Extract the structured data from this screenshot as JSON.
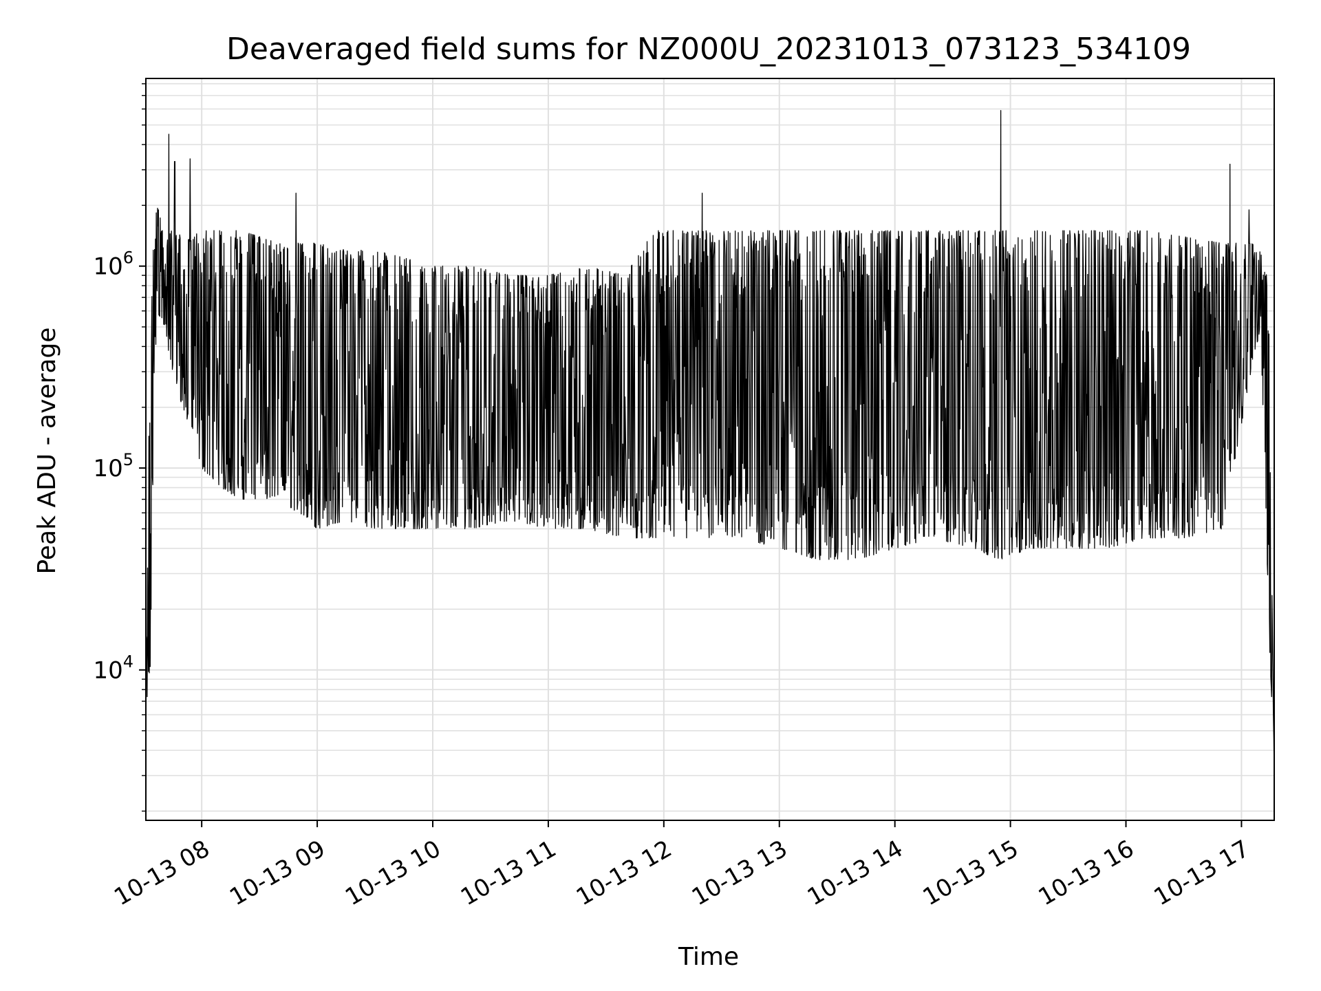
{
  "chart_data": {
    "type": "line",
    "title": "Deaveraged field sums for NZ000U_20231013_073123_534109",
    "xlabel": "Time",
    "ylabel": "Peak ADU - average",
    "yscale": "log",
    "ylim": [
      1800,
      8500000
    ],
    "xlim": [
      "2023-10-13 07:31",
      "2023-10-13 17:17"
    ],
    "x_ticks": [
      "10-13 08",
      "10-13 09",
      "10-13 10",
      "10-13 11",
      "10-13 12",
      "10-13 13",
      "10-13 14",
      "10-13 15",
      "10-13 16",
      "10-13 17"
    ],
    "y_ticks": [
      {
        "base": "10",
        "exp": "4",
        "value": 10000
      },
      {
        "base": "10",
        "exp": "5",
        "value": 100000
      },
      {
        "base": "10",
        "exp": "6",
        "value": 1000000
      }
    ],
    "grid": true,
    "line_color": "#000000",
    "grid_color": "#e0e0e0",
    "series": [
      {
        "x": [
          "2023-10-13 07:31",
          "2023-10-13 07:33",
          "2023-10-13 07:35",
          "2023-10-13 07:37",
          "2023-10-13 07:40",
          "2023-10-13 07:45",
          "2023-10-13 07:50",
          "2023-10-13 07:55",
          "2023-10-13 08:00",
          "2023-10-13 08:10",
          "2023-10-13 08:20",
          "2023-10-13 08:30",
          "2023-10-13 08:40",
          "2023-10-13 08:50",
          "2023-10-13 09:00",
          "2023-10-13 09:15",
          "2023-10-13 09:30",
          "2023-10-13 09:45",
          "2023-10-13 10:00",
          "2023-10-13 10:20",
          "2023-10-13 10:40",
          "2023-10-13 11:00",
          "2023-10-13 11:20",
          "2023-10-13 11:40",
          "2023-10-13 11:55",
          "2023-10-13 12:05",
          "2023-10-13 12:20",
          "2023-10-13 12:40",
          "2023-10-13 13:00",
          "2023-10-13 13:20",
          "2023-10-13 13:40",
          "2023-10-13 14:00",
          "2023-10-13 14:20",
          "2023-10-13 14:40",
          "2023-10-13 14:55",
          "2023-10-13 15:10",
          "2023-10-13 15:30",
          "2023-10-13 15:50",
          "2023-10-13 16:10",
          "2023-10-13 16:30",
          "2023-10-13 16:50",
          "2023-10-13 17:05",
          "2023-10-13 17:10",
          "2023-10-13 17:14",
          "2023-10-13 17:17"
        ],
        "low": [
          5000,
          6000,
          150000,
          600000,
          500000,
          300000,
          200000,
          150000,
          100000,
          80000,
          70000,
          70000,
          70000,
          60000,
          50000,
          55000,
          50000,
          50000,
          50000,
          50000,
          55000,
          50000,
          50000,
          45000,
          45000,
          45000,
          45000,
          45000,
          40000,
          35000,
          35000,
          40000,
          45000,
          40000,
          35000,
          40000,
          40000,
          40000,
          45000,
          45000,
          50000,
          300000,
          500000,
          20000,
          2500
        ],
        "high": [
          10000,
          300000,
          1500000,
          2000000,
          1500000,
          1500000,
          1400000,
          1400000,
          1500000,
          1500000,
          1500000,
          1400000,
          1300000,
          1300000,
          1300000,
          1200000,
          1200000,
          1100000,
          1000000,
          1000000,
          900000,
          900000,
          1000000,
          900000,
          1500000,
          1500000,
          1500000,
          1500000,
          1500000,
          1500000,
          1500000,
          1500000,
          1500000,
          1500000,
          1500000,
          1500000,
          1500000,
          1500000,
          1500000,
          1400000,
          1300000,
          1300000,
          1300000,
          800000,
          3000
        ]
      }
    ],
    "spikes": [
      {
        "x": "2023-10-13 07:43",
        "y": 4500000
      },
      {
        "x": "2023-10-13 07:46",
        "y": 3300000
      },
      {
        "x": "2023-10-13 07:54",
        "y": 3400000
      },
      {
        "x": "2023-10-13 08:49",
        "y": 2300000
      },
      {
        "x": "2023-10-13 12:20",
        "y": 2300000
      },
      {
        "x": "2023-10-13 14:55",
        "y": 5900000
      },
      {
        "x": "2023-10-13 16:54",
        "y": 3200000
      },
      {
        "x": "2023-10-13 17:04",
        "y": 1900000
      }
    ]
  }
}
